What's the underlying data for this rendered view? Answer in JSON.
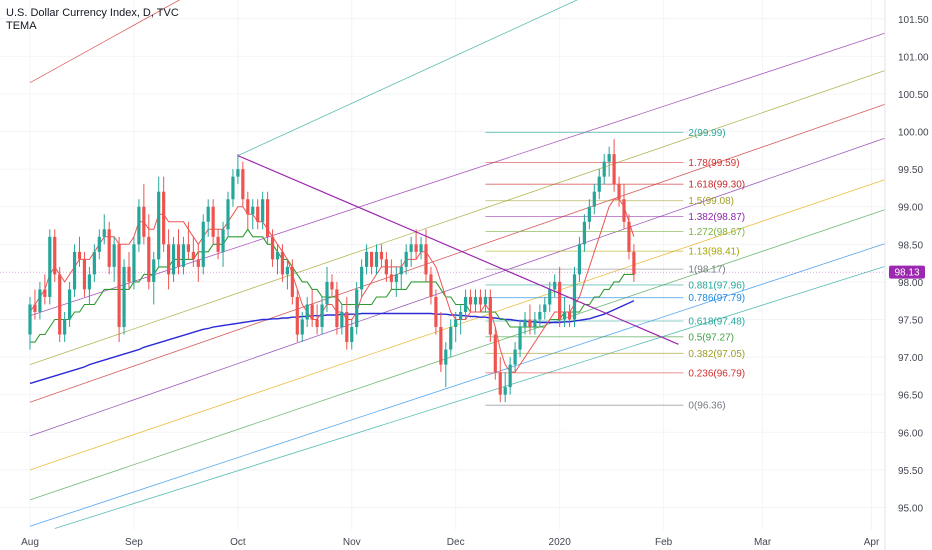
{
  "header": {
    "title": "U.S. Dollar Currency Index, D, TVC",
    "indicator": "TEMA"
  },
  "colors": {
    "background": "#ffffff",
    "up_candle": "#26a69a",
    "down_candle": "#ef5350",
    "tema_fast": "#ef5350",
    "tema_mid": "#2e9b2e",
    "tema_slow": "#2b2bd6",
    "trendline": "#9c27b0",
    "last_price_bg": "#9c27b0",
    "pitchfork_palette": [
      "#d32f2f",
      "#00897b",
      "#9e9d24",
      "#c62828",
      "#7b1fa2",
      "#e6a700",
      "#43a047",
      "#1e88e5",
      "#26a69a",
      "#8e24aa"
    ]
  },
  "chart_data": {
    "type": "candlestick",
    "title": "U.S. Dollar Currency Index, D, TVC",
    "indicator": "TEMA",
    "last_price": "98.13",
    "ylim": [
      94.7,
      101.75
    ],
    "y_ticks": [
      "95.00",
      "95.50",
      "96.00",
      "96.50",
      "97.00",
      "97.50",
      "98.00",
      "98.50",
      "99.00",
      "99.50",
      "100.00",
      "100.50",
      "101.00",
      "101.50"
    ],
    "x_ticks": [
      {
        "label": "Aug",
        "t": 0
      },
      {
        "label": "Sep",
        "t": 21
      },
      {
        "label": "Oct",
        "t": 42
      },
      {
        "label": "Nov",
        "t": 65
      },
      {
        "label": "Dec",
        "t": 86
      },
      {
        "label": "2020",
        "t": 107
      },
      {
        "label": "Feb",
        "t": 128
      },
      {
        "label": "Mar",
        "t": 148
      },
      {
        "label": "Apr",
        "t": 170
      }
    ],
    "candles": [
      [
        97.3,
        97.8,
        97.1,
        97.7
      ],
      [
        97.7,
        97.9,
        97.5,
        97.6
      ],
      [
        97.6,
        98.0,
        97.5,
        97.9
      ],
      [
        97.9,
        98.1,
        97.7,
        97.8
      ],
      [
        97.8,
        98.7,
        97.7,
        98.6
      ],
      [
        98.6,
        98.7,
        98.0,
        98.1
      ],
      [
        98.1,
        98.2,
        97.2,
        97.3
      ],
      [
        97.3,
        97.6,
        97.2,
        97.5
      ],
      [
        97.5,
        98.0,
        97.4,
        97.9
      ],
      [
        97.9,
        98.5,
        97.8,
        98.4
      ],
      [
        98.4,
        98.6,
        98.2,
        98.3
      ],
      [
        98.3,
        98.4,
        97.8,
        97.9
      ],
      [
        97.9,
        98.2,
        97.7,
        98.1
      ],
      [
        98.1,
        98.5,
        98.0,
        98.4
      ],
      [
        98.4,
        98.7,
        98.3,
        98.6
      ],
      [
        98.6,
        98.9,
        98.5,
        98.7
      ],
      [
        98.7,
        98.8,
        98.1,
        98.2
      ],
      [
        98.2,
        98.6,
        98.0,
        98.5
      ],
      [
        98.5,
        98.6,
        97.2,
        97.4
      ],
      [
        97.4,
        98.3,
        97.3,
        98.2
      ],
      [
        98.2,
        98.4,
        97.9,
        98.0
      ],
      [
        98.0,
        98.6,
        97.9,
        98.5
      ],
      [
        98.5,
        99.1,
        98.4,
        99.0
      ],
      [
        99.0,
        99.3,
        98.5,
        98.6
      ],
      [
        98.6,
        98.9,
        97.9,
        98.0
      ],
      [
        98.0,
        98.4,
        97.7,
        98.3
      ],
      [
        98.3,
        99.4,
        98.2,
        99.2
      ],
      [
        99.2,
        99.4,
        98.4,
        98.5
      ],
      [
        98.5,
        98.7,
        97.9,
        98.1
      ],
      [
        98.1,
        98.6,
        98.0,
        98.5
      ],
      [
        98.5,
        98.7,
        98.1,
        98.2
      ],
      [
        98.2,
        98.6,
        98.1,
        98.5
      ],
      [
        98.5,
        98.8,
        98.3,
        98.4
      ],
      [
        98.4,
        98.6,
        98.2,
        98.3
      ],
      [
        98.3,
        98.5,
        98.0,
        98.2
      ],
      [
        98.2,
        98.9,
        98.1,
        98.8
      ],
      [
        98.8,
        99.1,
        98.6,
        99.0
      ],
      [
        99.0,
        99.1,
        98.5,
        98.6
      ],
      [
        98.6,
        98.7,
        98.3,
        98.4
      ],
      [
        98.4,
        98.8,
        98.2,
        98.7
      ],
      [
        98.7,
        99.2,
        98.6,
        99.1
      ],
      [
        99.1,
        99.5,
        99.0,
        99.4
      ],
      [
        99.4,
        99.7,
        99.3,
        99.5
      ],
      [
        99.5,
        99.6,
        99.0,
        99.1
      ],
      [
        99.1,
        99.2,
        98.7,
        98.9
      ],
      [
        98.9,
        99.1,
        98.7,
        99.0
      ],
      [
        99.0,
        99.1,
        98.7,
        98.8
      ],
      [
        98.8,
        99.2,
        98.7,
        99.1
      ],
      [
        99.1,
        99.2,
        98.5,
        98.6
      ],
      [
        98.6,
        98.7,
        98.2,
        98.3
      ],
      [
        98.3,
        98.5,
        98.1,
        98.4
      ],
      [
        98.4,
        98.5,
        98.0,
        98.1
      ],
      [
        98.1,
        98.3,
        97.9,
        98.2
      ],
      [
        98.2,
        98.3,
        97.7,
        97.8
      ],
      [
        97.8,
        97.9,
        97.2,
        97.3
      ],
      [
        97.3,
        97.6,
        97.2,
        97.5
      ],
      [
        97.5,
        97.8,
        97.4,
        97.7
      ],
      [
        97.7,
        97.9,
        97.4,
        97.5
      ],
      [
        97.5,
        97.7,
        97.3,
        97.4
      ],
      [
        97.4,
        97.8,
        97.3,
        97.7
      ],
      [
        97.7,
        98.2,
        97.6,
        98.0
      ],
      [
        98.0,
        98.1,
        97.8,
        97.9
      ],
      [
        97.9,
        98.0,
        97.3,
        97.4
      ],
      [
        97.4,
        97.7,
        97.3,
        97.6
      ],
      [
        97.6,
        97.8,
        97.1,
        97.2
      ],
      [
        97.2,
        97.5,
        97.1,
        97.4
      ],
      [
        97.4,
        98.0,
        97.3,
        97.9
      ],
      [
        97.9,
        98.3,
        97.8,
        98.2
      ],
      [
        98.2,
        98.5,
        98.1,
        98.4
      ],
      [
        98.4,
        98.4,
        98.1,
        98.2
      ],
      [
        98.2,
        98.5,
        98.1,
        98.4
      ],
      [
        98.4,
        98.5,
        98.2,
        98.3
      ],
      [
        98.3,
        98.4,
        98.0,
        98.1
      ],
      [
        98.1,
        98.3,
        97.9,
        98.0
      ],
      [
        98.0,
        98.2,
        97.8,
        98.1
      ],
      [
        98.1,
        98.3,
        97.9,
        98.2
      ],
      [
        98.2,
        98.5,
        98.1,
        98.4
      ],
      [
        98.4,
        98.6,
        98.2,
        98.5
      ],
      [
        98.5,
        98.7,
        98.3,
        98.4
      ],
      [
        98.4,
        98.6,
        98.3,
        98.5
      ],
      [
        98.5,
        98.7,
        98.0,
        98.1
      ],
      [
        98.1,
        98.2,
        97.7,
        97.8
      ],
      [
        97.8,
        97.9,
        97.3,
        97.4
      ],
      [
        97.4,
        97.6,
        96.8,
        96.9
      ],
      [
        96.9,
        97.2,
        96.6,
        97.1
      ],
      [
        97.1,
        97.5,
        97.0,
        97.4
      ],
      [
        97.4,
        97.6,
        97.2,
        97.5
      ],
      [
        97.5,
        97.7,
        97.3,
        97.6
      ],
      [
        97.6,
        97.9,
        97.5,
        97.8
      ],
      [
        97.8,
        97.9,
        97.6,
        97.7
      ],
      [
        97.7,
        97.9,
        97.6,
        97.8
      ],
      [
        97.8,
        97.9,
        97.6,
        97.7
      ],
      [
        97.7,
        97.9,
        97.6,
        97.8
      ],
      [
        97.8,
        97.9,
        97.2,
        97.3
      ],
      [
        97.3,
        97.4,
        96.7,
        96.8
      ],
      [
        96.8,
        97.0,
        96.4,
        96.5
      ],
      [
        96.5,
        96.8,
        96.4,
        96.6
      ],
      [
        96.6,
        97.0,
        96.5,
        96.9
      ],
      [
        96.9,
        97.2,
        96.8,
        97.1
      ],
      [
        97.1,
        97.5,
        97.0,
        97.4
      ],
      [
        97.4,
        97.6,
        97.3,
        97.5
      ],
      [
        97.5,
        97.7,
        97.3,
        97.4
      ],
      [
        97.4,
        97.6,
        97.3,
        97.5
      ],
      [
        97.5,
        97.7,
        97.4,
        97.6
      ],
      [
        97.6,
        97.8,
        97.5,
        97.7
      ],
      [
        97.7,
        98.0,
        97.6,
        97.9
      ],
      [
        97.9,
        98.1,
        97.8,
        98.0
      ],
      [
        98.0,
        98.2,
        97.4,
        97.5
      ],
      [
        97.5,
        97.8,
        97.4,
        97.6
      ],
      [
        97.6,
        97.7,
        97.4,
        97.5
      ],
      [
        97.5,
        98.2,
        97.4,
        98.1
      ],
      [
        98.1,
        98.6,
        98.0,
        98.5
      ],
      [
        98.5,
        98.9,
        98.4,
        98.8
      ],
      [
        98.8,
        99.1,
        98.7,
        99.0
      ],
      [
        99.0,
        99.3,
        98.9,
        99.2
      ],
      [
        99.2,
        99.5,
        99.1,
        99.4
      ],
      [
        99.4,
        99.7,
        99.3,
        99.6
      ],
      [
        99.6,
        99.8,
        99.4,
        99.7
      ],
      [
        99.7,
        99.9,
        99.2,
        99.3
      ],
      [
        99.3,
        99.4,
        99.0,
        99.1
      ],
      [
        99.1,
        99.3,
        98.7,
        98.8
      ],
      [
        98.8,
        98.9,
        98.3,
        98.4
      ],
      [
        98.4,
        98.5,
        98.0,
        98.1
      ]
    ],
    "ema_fast": [
      97.6,
      97.7,
      97.8,
      97.9,
      98.1,
      98.2,
      98.1,
      98.0,
      98.1,
      98.2,
      98.3,
      98.3,
      98.3,
      98.4,
      98.5,
      98.6,
      98.6,
      98.6,
      98.5,
      98.5,
      98.5,
      98.6,
      98.8,
      98.8,
      98.7,
      98.7,
      98.9,
      98.9,
      98.8,
      98.8,
      98.8,
      98.8,
      98.7,
      98.6,
      98.5,
      98.6,
      98.7,
      98.7,
      98.7,
      98.7,
      98.8,
      98.9,
      99.0,
      99.0,
      98.9,
      98.9,
      98.8,
      98.8,
      98.7,
      98.6,
      98.5,
      98.4,
      98.3,
      98.1,
      97.9,
      97.7,
      97.6,
      97.5,
      97.5,
      97.6,
      97.7,
      97.7,
      97.6,
      97.6,
      97.5,
      97.5,
      97.6,
      97.8,
      97.9,
      98.0,
      98.1,
      98.2,
      98.2,
      98.2,
      98.2,
      98.2,
      98.3,
      98.3,
      98.3,
      98.4,
      98.4,
      98.3,
      98.2,
      98.0,
      97.8,
      97.6,
      97.5,
      97.5,
      97.5,
      97.6,
      97.6,
      97.6,
      97.7,
      97.6,
      97.4,
      97.1,
      96.9,
      96.8,
      96.8,
      96.9,
      97.0,
      97.1,
      97.2,
      97.3,
      97.4,
      97.5,
      97.6,
      97.6,
      97.6,
      97.6,
      97.7,
      97.8,
      98.0,
      98.2,
      98.4,
      98.6,
      98.8,
      99.0,
      99.1,
      99.1,
      99.0,
      98.8,
      98.6
    ],
    "ema_mid": [
      97.2,
      97.2,
      97.3,
      97.3,
      97.4,
      97.5,
      97.5,
      97.5,
      97.5,
      97.6,
      97.6,
      97.7,
      97.7,
      97.7,
      97.8,
      97.9,
      97.9,
      97.9,
      97.9,
      97.9,
      97.9,
      98.0,
      98.0,
      98.1,
      98.1,
      98.1,
      98.2,
      98.2,
      98.2,
      98.3,
      98.3,
      98.3,
      98.3,
      98.3,
      98.4,
      98.4,
      98.4,
      98.5,
      98.5,
      98.5,
      98.6,
      98.6,
      98.6,
      98.6,
      98.7,
      98.6,
      98.6,
      98.6,
      98.5,
      98.5,
      98.4,
      98.3,
      98.3,
      98.2,
      98.1,
      98.0,
      98.0,
      97.9,
      97.9,
      97.8,
      97.8,
      97.8,
      97.8,
      97.7,
      97.7,
      97.7,
      97.7,
      97.7,
      97.7,
      97.7,
      97.8,
      97.8,
      97.8,
      97.9,
      97.9,
      97.9,
      97.9,
      98.0,
      98.0,
      98.0,
      98.0,
      98.0,
      98.0,
      97.9,
      97.8,
      97.8,
      97.7,
      97.7,
      97.7,
      97.6,
      97.6,
      97.6,
      97.6,
      97.6,
      97.6,
      97.5,
      97.5,
      97.4,
      97.4,
      97.4,
      97.4,
      97.4,
      97.4,
      97.4,
      97.4,
      97.5,
      97.5,
      97.5,
      97.6,
      97.6,
      97.6,
      97.6,
      97.7,
      97.7,
      97.8,
      97.8,
      97.9,
      97.9,
      98.0,
      98.0,
      98.1,
      98.1,
      98.1
    ],
    "ema_slow": [
      96.65,
      96.67,
      96.69,
      96.71,
      96.73,
      96.75,
      96.77,
      96.79,
      96.81,
      96.83,
      96.85,
      96.87,
      96.9,
      96.92,
      96.94,
      96.96,
      96.98,
      97.0,
      97.02,
      97.04,
      97.06,
      97.08,
      97.1,
      97.13,
      97.15,
      97.17,
      97.19,
      97.21,
      97.23,
      97.25,
      97.27,
      97.29,
      97.31,
      97.33,
      97.35,
      97.37,
      97.38,
      97.4,
      97.41,
      97.42,
      97.43,
      97.44,
      97.45,
      97.46,
      97.47,
      97.48,
      97.49,
      97.5,
      97.5,
      97.51,
      97.51,
      97.52,
      97.52,
      97.53,
      97.53,
      97.54,
      97.54,
      97.55,
      97.55,
      97.55,
      97.56,
      97.56,
      97.56,
      97.57,
      97.57,
      97.57,
      97.57,
      97.58,
      97.58,
      97.58,
      97.58,
      97.58,
      97.58,
      97.58,
      97.58,
      97.58,
      97.58,
      97.58,
      97.58,
      97.58,
      97.58,
      97.58,
      97.57,
      97.57,
      97.57,
      97.56,
      97.56,
      97.55,
      97.55,
      97.54,
      97.54,
      97.53,
      97.53,
      97.52,
      97.52,
      97.51,
      97.5,
      97.5,
      97.49,
      97.48,
      97.48,
      97.47,
      97.47,
      97.46,
      97.46,
      97.46,
      97.46,
      97.46,
      97.47,
      97.47,
      97.48,
      97.49,
      97.5,
      97.51,
      97.53,
      97.55,
      97.57,
      97.6,
      97.63,
      97.66,
      97.69,
      97.72,
      97.75
    ],
    "trendline": {
      "from": [
        42,
        99.68
      ],
      "to": [
        131,
        97.17
      ]
    },
    "fib_levels": [
      {
        "label": "2(99.99)",
        "value": 99.99,
        "color": "#26a69a"
      },
      {
        "label": "1.78(99.59)",
        "value": 99.59,
        "color": "#d32f2f"
      },
      {
        "label": "1.618(99.30)",
        "value": 99.3,
        "color": "#c62828"
      },
      {
        "label": "1.5(99.08)",
        "value": 99.08,
        "color": "#9e9d24"
      },
      {
        "label": "1.382(98.87)",
        "value": 98.87,
        "color": "#8e24aa"
      },
      {
        "label": "1.272(98.67)",
        "value": 98.67,
        "color": "#7cb342"
      },
      {
        "label": "1.13(98.41)",
        "value": 98.41,
        "color": "#a5a500"
      },
      {
        "label": "1(98.17)",
        "value": 98.17,
        "color": "#787b86"
      },
      {
        "label": "0.881(97.96)",
        "value": 97.96,
        "color": "#26a69a"
      },
      {
        "label": "0.786(97.79)",
        "value": 97.79,
        "color": "#1e88e5"
      },
      {
        "label": "0.618(97.48)",
        "value": 97.48,
        "color": "#26a69a"
      },
      {
        "label": "0.5(97.27)",
        "value": 97.27,
        "color": "#43a047"
      },
      {
        "label": "0.382(97.05)",
        "value": 97.05,
        "color": "#9e9d24"
      },
      {
        "label": "0.236(96.79)",
        "value": 96.79,
        "color": "#d32f2f"
      },
      {
        "label": "0(96.36)",
        "value": 96.36,
        "color": "#787b86"
      }
    ],
    "fib_span": {
      "from_t": 92,
      "to_t": 132
    },
    "channel_lines": [
      {
        "color": "#d32f2f",
        "p1": [
          0,
          100.65
        ],
        "p2": [
          48,
          102.4
        ]
      },
      {
        "color": "#26a69a",
        "p1": [
          42,
          99.68
        ],
        "p2": [
          132,
          102.4
        ]
      },
      {
        "color": "#9e9d24",
        "p1": [
          0,
          96.9
        ],
        "p2": [
          170,
          100.75
        ]
      },
      {
        "color": "#c62828",
        "p1": [
          0,
          96.4
        ],
        "p2": [
          170,
          100.3
        ]
      },
      {
        "color": "#7b1fa2",
        "p1": [
          0,
          95.95
        ],
        "p2": [
          170,
          99.85
        ]
      },
      {
        "color": "#e6a700",
        "p1": [
          0,
          95.5
        ],
        "p2": [
          170,
          99.3
        ]
      },
      {
        "color": "#43a047",
        "p1": [
          0,
          95.1
        ],
        "p2": [
          170,
          98.9
        ]
      },
      {
        "color": "#1e88e5",
        "p1": [
          0,
          94.75
        ],
        "p2": [
          170,
          98.45
        ]
      },
      {
        "color": "#26a69a",
        "p1": [
          5,
          94.72
        ],
        "p2": [
          170,
          98.15
        ]
      },
      {
        "color": "#8e24aa",
        "p1": [
          0,
          97.55
        ],
        "p2": [
          170,
          101.25
        ]
      }
    ]
  }
}
